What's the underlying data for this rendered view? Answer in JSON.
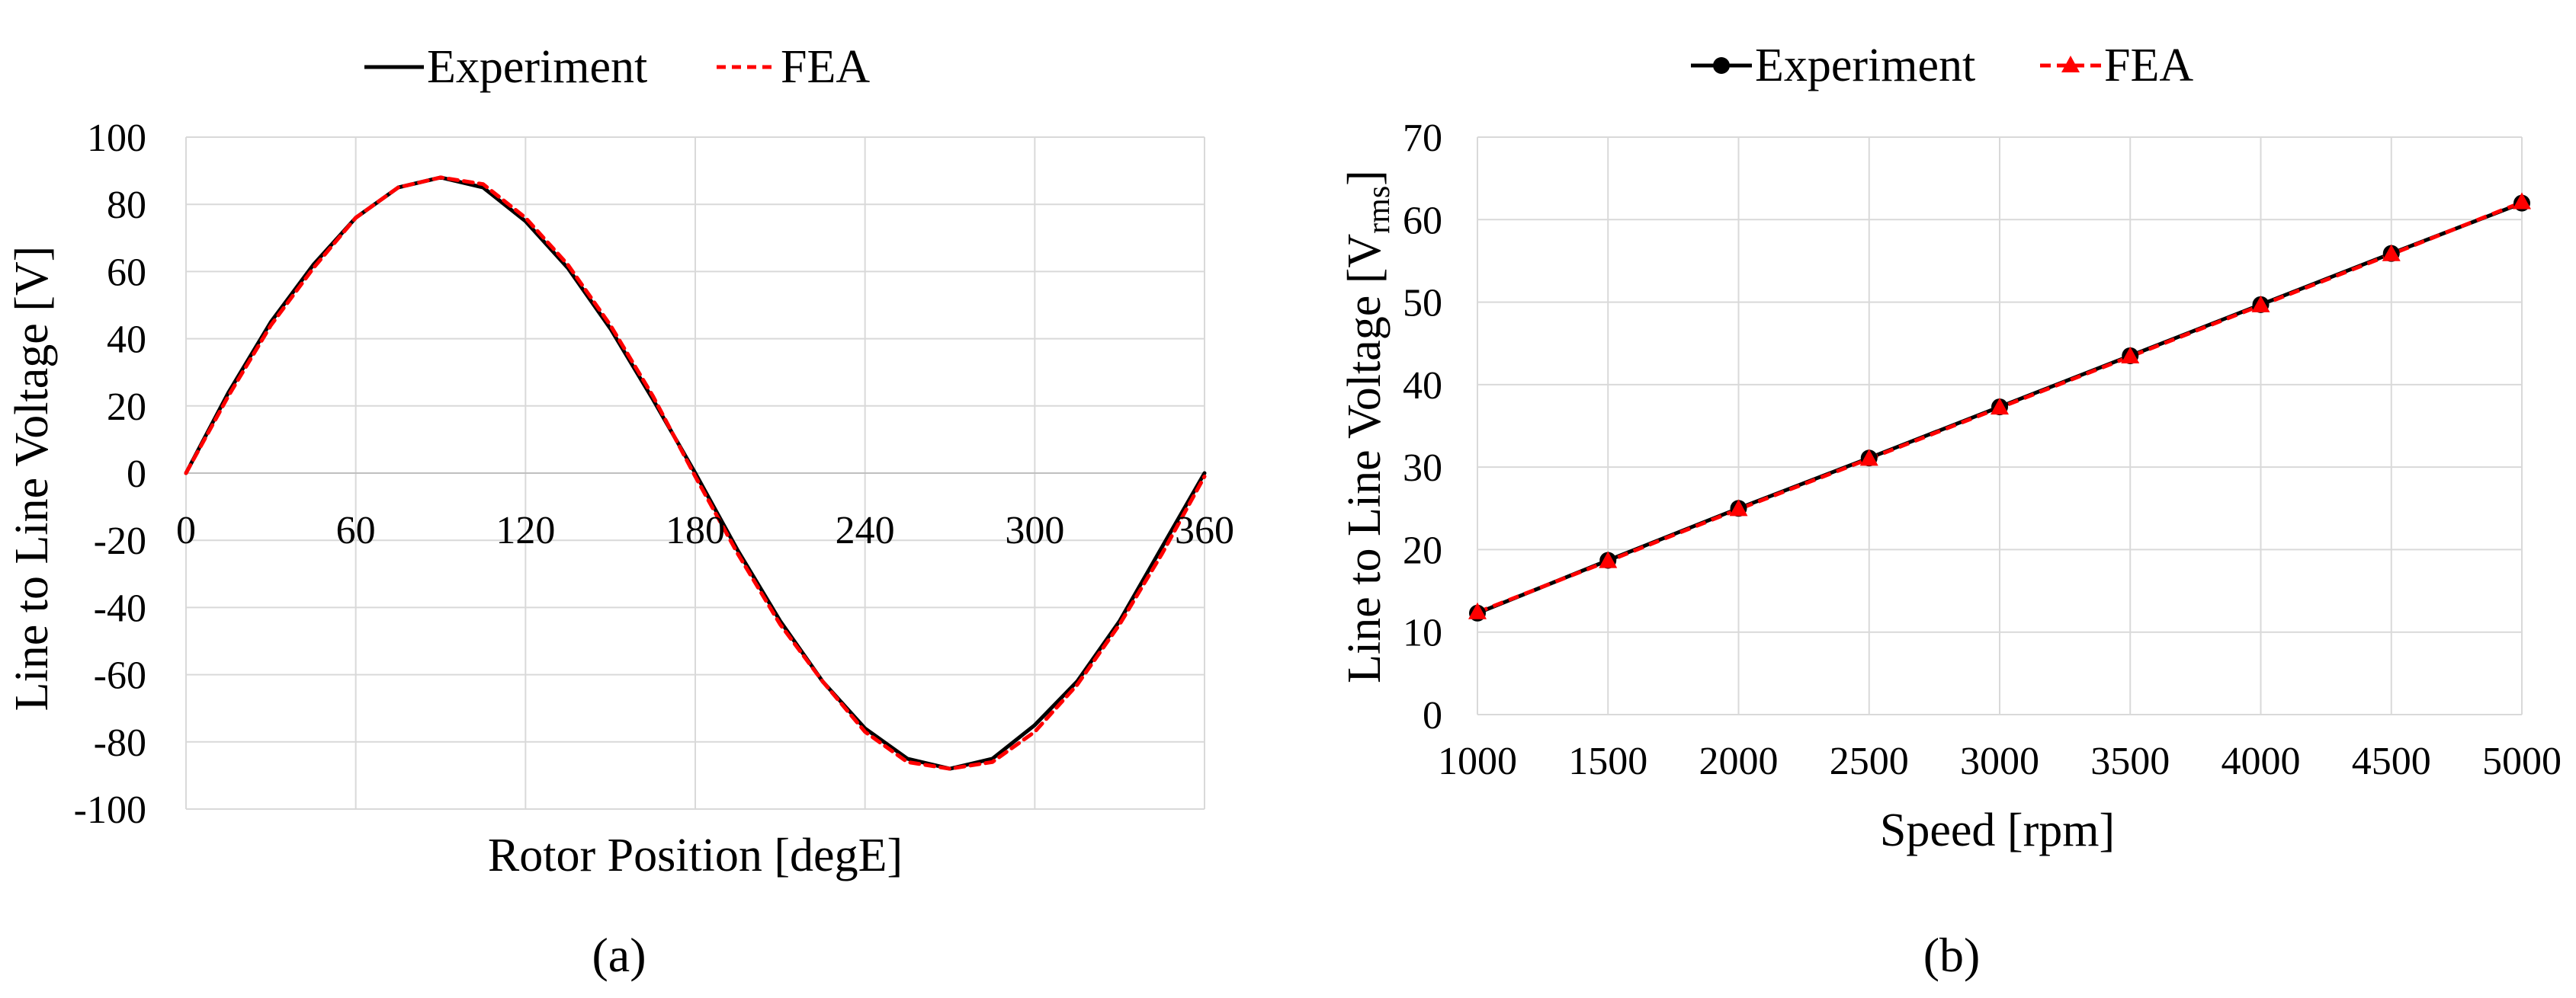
{
  "figure": {
    "panel_a_label": "(a)",
    "panel_b_label": "(b)"
  },
  "colors": {
    "experiment": "#000000",
    "fea": "#ff0000",
    "grid": "#d9d9d9"
  },
  "chart_data": [
    {
      "type": "line",
      "title": "",
      "xlabel": "Rotor Position [degE]",
      "ylabel": "Line to Line Voltage [V]",
      "xlim": [
        0,
        360
      ],
      "ylim": [
        -100,
        100
      ],
      "xticks": [
        0,
        60,
        120,
        180,
        240,
        300,
        360
      ],
      "yticks": [
        -100,
        -80,
        -60,
        -40,
        -20,
        0,
        20,
        40,
        60,
        80,
        100
      ],
      "grid": true,
      "legend_position": "top",
      "x": [
        0,
        15,
        30,
        45,
        60,
        75,
        90,
        105,
        120,
        135,
        150,
        165,
        180,
        195,
        210,
        225,
        240,
        255,
        270,
        285,
        300,
        315,
        330,
        345,
        360
      ],
      "series": [
        {
          "name": "Experiment",
          "style": "solid",
          "values": [
            0,
            24,
            45,
            62,
            76,
            85,
            88,
            85,
            75,
            61,
            43,
            22,
            0,
            -23,
            -44,
            -62,
            -76,
            -85,
            -88,
            -85,
            -75,
            -62,
            -44,
            -22,
            0
          ]
        },
        {
          "name": "FEA",
          "style": "dashed",
          "values": [
            0,
            23,
            44,
            61,
            76,
            85,
            88,
            86,
            76,
            62,
            44,
            23,
            -1,
            -24,
            -45,
            -62,
            -77,
            -86,
            -88,
            -86,
            -77,
            -63,
            -45,
            -24,
            -1
          ]
        }
      ]
    },
    {
      "type": "line",
      "title": "",
      "xlabel": "Speed [rpm]",
      "ylabel_main": "Line to Line Voltage [V",
      "ylabel_sub": "rms",
      "ylabel_close": "]",
      "xlim": [
        1000,
        5000
      ],
      "ylim": [
        0,
        70
      ],
      "xticks": [
        1000,
        1500,
        2000,
        2500,
        3000,
        3500,
        4000,
        4500,
        5000
      ],
      "yticks": [
        0,
        10,
        20,
        30,
        40,
        50,
        60,
        70
      ],
      "grid": true,
      "legend_position": "top",
      "x": [
        1000,
        1500,
        2000,
        2500,
        3000,
        3500,
        4000,
        4500,
        5000
      ],
      "series": [
        {
          "name": "Experiment",
          "marker": "circle",
          "style": "solid",
          "values": [
            12.3,
            18.7,
            25.0,
            31.1,
            37.3,
            43.5,
            49.7,
            55.9,
            62.0
          ]
        },
        {
          "name": "FEA",
          "marker": "triangle",
          "style": "dashed",
          "values": [
            12.4,
            18.6,
            24.9,
            31.0,
            37.2,
            43.4,
            49.6,
            55.8,
            62.1
          ]
        }
      ]
    }
  ]
}
